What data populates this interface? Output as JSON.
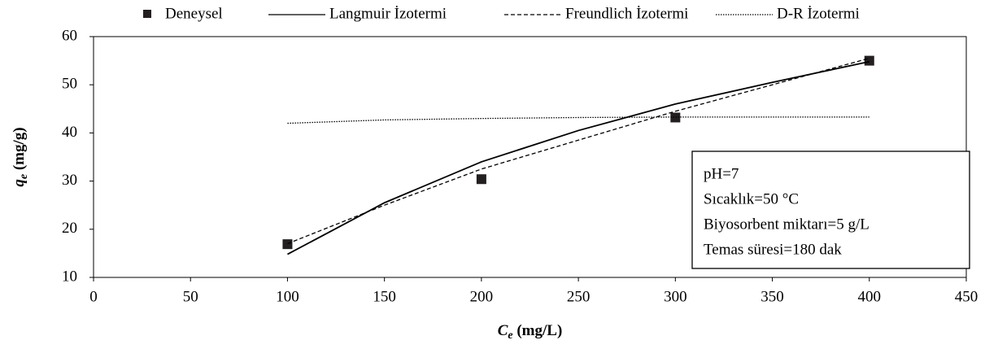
{
  "chart_data": {
    "type": "scatter_lines",
    "xlabel_parts": [
      "C",
      "e",
      " (mg/L)"
    ],
    "ylabel_parts": [
      "q",
      "e",
      " (mg/g)"
    ],
    "xlim": [
      0,
      450
    ],
    "xticks": [
      0,
      50,
      100,
      150,
      200,
      250,
      300,
      350,
      400,
      450
    ],
    "ylim": [
      10,
      60
    ],
    "yticks": [
      10,
      20,
      30,
      40,
      50,
      60
    ],
    "grid": false,
    "legend": "top",
    "series": [
      {
        "name": "Deneysel",
        "style": "marker",
        "color": "#231f20",
        "x": [
          100,
          200,
          300,
          400
        ],
        "values": [
          16.9,
          30.4,
          43.2,
          55
        ]
      },
      {
        "name": "Langmuir İzotermi",
        "style": "solid",
        "color": "#000000",
        "x": [
          100,
          150,
          200,
          250,
          300,
          350,
          400
        ],
        "values": [
          14.8,
          25.5,
          34,
          40.5,
          46,
          50.5,
          54.8
        ]
      },
      {
        "name": "Freundlich İzotermi",
        "style": "dashed",
        "color": "#000000",
        "x": [
          100,
          150,
          200,
          250,
          300,
          350,
          400
        ],
        "values": [
          17,
          25,
          32.5,
          38.5,
          44.5,
          50,
          55.5
        ]
      },
      {
        "name": "D-R İzotermi",
        "style": "dotted",
        "color": "#000000",
        "x": [
          100,
          150,
          200,
          250,
          300,
          350,
          400
        ],
        "values": [
          42,
          42.7,
          43,
          43.2,
          43.3,
          43.3,
          43.3
        ]
      }
    ],
    "annotations": [
      "pH=7",
      "Sıcaklık=50 °C",
      "Biyosorbent miktarı=5 g/L",
      "Temas süresi=180 dak"
    ]
  }
}
